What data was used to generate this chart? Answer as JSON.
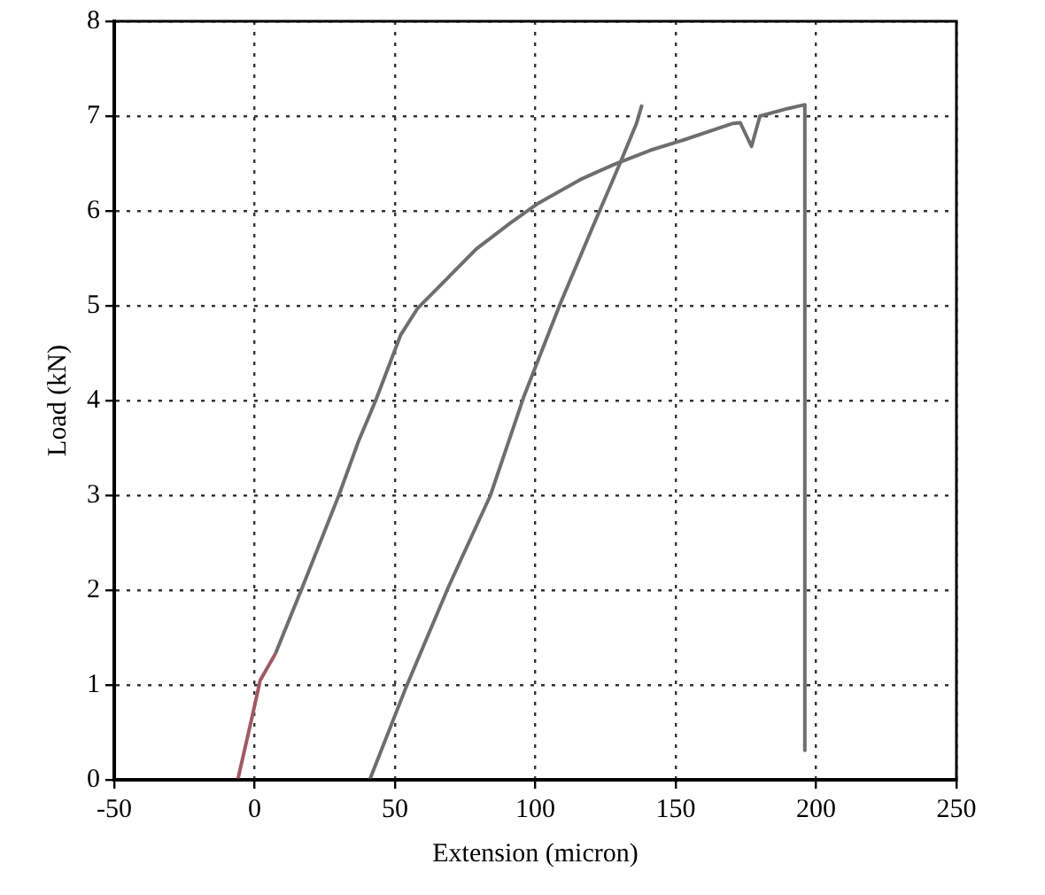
{
  "chart_data": {
    "type": "line",
    "xlabel": "Extension (micron)",
    "ylabel": "Load (kN)",
    "xlim": [
      -50,
      250
    ],
    "xticks": [
      -50,
      0,
      50,
      100,
      150,
      200,
      250
    ],
    "ylim": [
      0,
      8
    ],
    "yticks": [
      0,
      1,
      2,
      3,
      4,
      5,
      6,
      7,
      8
    ],
    "grid": true,
    "marker": "none",
    "line_style": "solid",
    "series": [
      {
        "color": "#a05a64",
        "x": [
          -6,
          -1,
          2,
          7.4
        ],
        "values": [
          0,
          0.65,
          1.05,
          1.33
        ]
      },
      {
        "color": "#6e6e6e",
        "x": [
          7.4,
          17,
          30,
          37,
          43,
          52,
          58,
          67,
          79,
          91,
          101,
          116,
          128,
          141,
          153,
          170,
          173,
          177,
          180,
          190,
          196,
          196
        ],
        "values": [
          1.33,
          2.03,
          3.0,
          3.57,
          3.99,
          4.69,
          4.97,
          5.24,
          5.6,
          5.87,
          6.08,
          6.33,
          6.49,
          6.64,
          6.75,
          6.92,
          6.93,
          6.68,
          7.0,
          7.08,
          7.12,
          0.31
        ]
      },
      {
        "color": "#6e6e6e",
        "x": [
          41,
          54,
          69,
          84,
          96,
          109,
          121,
          130,
          136,
          138
        ],
        "values": [
          0,
          0.98,
          2.03,
          3.0,
          4.05,
          5.03,
          5.87,
          6.49,
          6.92,
          7.12
        ]
      }
    ]
  }
}
